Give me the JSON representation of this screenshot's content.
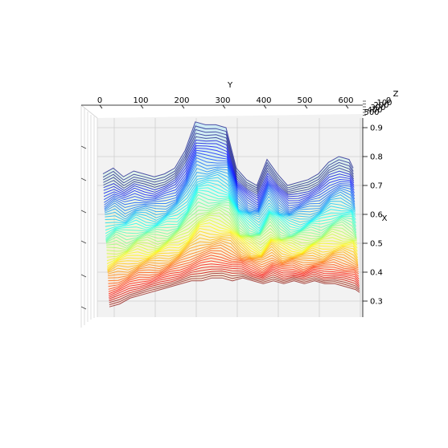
{
  "chart_data": {
    "type": "surface-3d-wireframe",
    "title": "",
    "xlabel": "X",
    "ylabel": "Y",
    "zlabel": "Z",
    "grid": true,
    "colormap": "jet",
    "y_axis": {
      "range": [
        -30,
        650
      ],
      "ticks": [
        0,
        100,
        200,
        300,
        400,
        500,
        600
      ],
      "tick_labels": [
        "0",
        "100",
        "200",
        "300",
        "400",
        "500",
        "600"
      ]
    },
    "x_axis": {
      "range": [
        0.24,
        0.94
      ],
      "ticks": [
        0.3,
        0.4,
        0.5,
        0.6,
        0.7,
        0.8,
        0.9
      ],
      "tick_labels": [
        "0.3",
        "0.4",
        "0.5",
        "0.6",
        "0.7",
        "0.8",
        "0.9"
      ]
    },
    "z_axis": {
      "ticks": [
        0,
        100,
        200,
        300,
        400,
        500
      ],
      "tick_labels": [
        "0",
        "100",
        "200",
        "300",
        "400",
        "500"
      ]
    },
    "series_count": 60,
    "y_samples": [
      0,
      25,
      50,
      75,
      100,
      125,
      150,
      175,
      200,
      225,
      250,
      275,
      300,
      325,
      350,
      375,
      400,
      425,
      450,
      475,
      500,
      525,
      550,
      575,
      600,
      610
    ],
    "profile_back": [
      0.74,
      0.76,
      0.73,
      0.75,
      0.74,
      0.73,
      0.74,
      0.76,
      0.82,
      0.92,
      0.91,
      0.91,
      0.9,
      0.76,
      0.72,
      0.7,
      0.79,
      0.74,
      0.7,
      0.71,
      0.72,
      0.74,
      0.78,
      0.8,
      0.79,
      0.76
    ],
    "profile_front": [
      0.28,
      0.29,
      0.31,
      0.32,
      0.33,
      0.34,
      0.35,
      0.36,
      0.37,
      0.37,
      0.38,
      0.38,
      0.37,
      0.38,
      0.37,
      0.36,
      0.37,
      0.36,
      0.37,
      0.36,
      0.37,
      0.36,
      0.36,
      0.35,
      0.34,
      0.33
    ]
  }
}
